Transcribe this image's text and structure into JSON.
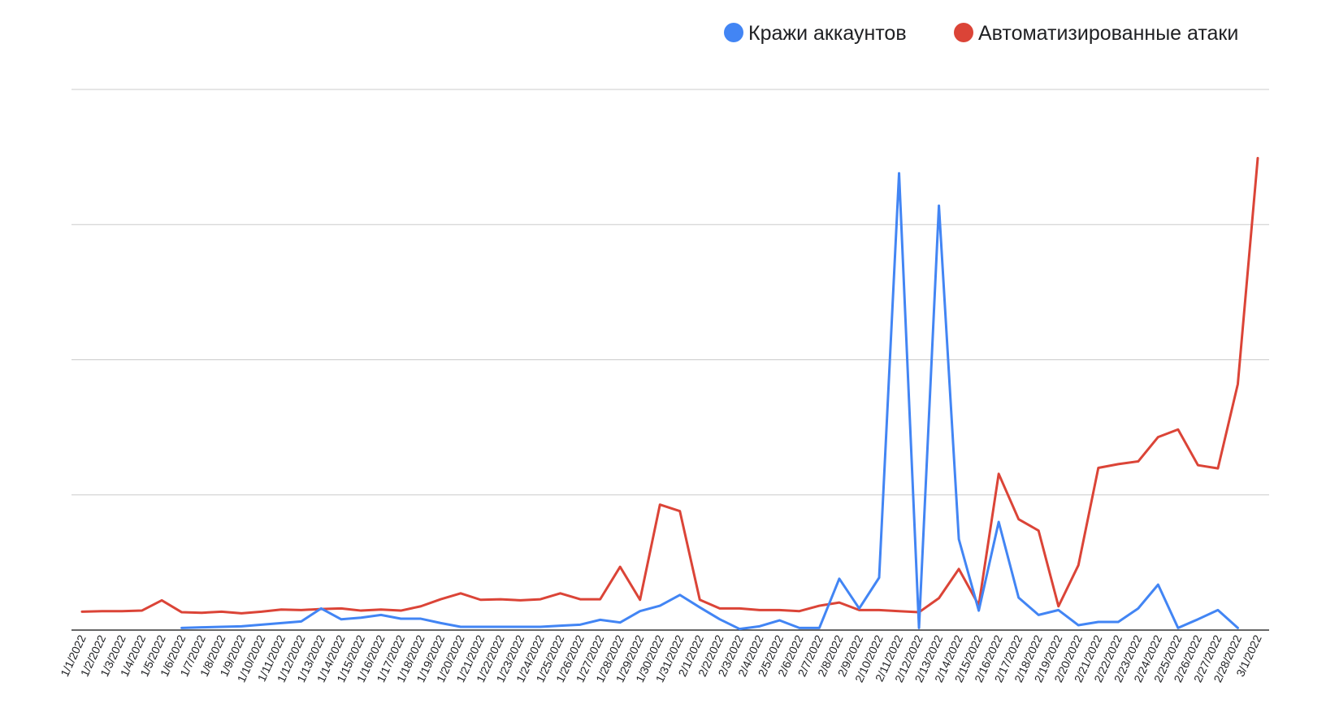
{
  "chart_data": {
    "type": "line",
    "title": "",
    "xlabel": "",
    "ylabel": "",
    "ylim": [
      0,
      100
    ],
    "y_gridlines": [
      0,
      25,
      50,
      75,
      100
    ],
    "y_tick_labels_shown": false,
    "grid": true,
    "legend_position": "top-right",
    "categories": [
      "1/1/2022",
      "1/2/2022",
      "1/3/2022",
      "1/4/2022",
      "1/5/2022",
      "1/6/2022",
      "1/7/2022",
      "1/8/2022",
      "1/9/2022",
      "1/10/2022",
      "1/11/2022",
      "1/12/2022",
      "1/13/2022",
      "1/14/2022",
      "1/15/2022",
      "1/16/2022",
      "1/17/2022",
      "1/18/2022",
      "1/19/2022",
      "1/20/2022",
      "1/21/2022",
      "1/22/2022",
      "1/23/2022",
      "1/24/2022",
      "1/25/2022",
      "1/26/2022",
      "1/27/2022",
      "1/28/2022",
      "1/29/2022",
      "1/30/2022",
      "1/31/2022",
      "2/1/2022",
      "2/2/2022",
      "2/3/2022",
      "2/4/2022",
      "2/5/2022",
      "2/6/2022",
      "2/7/2022",
      "2/8/2022",
      "2/9/2022",
      "2/10/2022",
      "2/11/2022",
      "2/12/2022",
      "2/13/2022",
      "2/14/2022",
      "2/15/2022",
      "2/16/2022",
      "2/17/2022",
      "2/18/2022",
      "2/19/2022",
      "2/20/2022",
      "2/21/2022",
      "2/22/2022",
      "2/23/2022",
      "2/24/2022",
      "2/25/2022",
      "2/26/2022",
      "2/27/2022",
      "2/28/2022",
      "3/1/2022"
    ],
    "series": [
      {
        "name": "Кражи аккаунтов",
        "color": "#4285f4",
        "values": [
          null,
          null,
          null,
          null,
          null,
          0.4,
          0.5,
          0.6,
          0.7,
          1.0,
          1.3,
          1.6,
          4.0,
          2.0,
          2.3,
          2.8,
          2.1,
          2.1,
          1.3,
          0.6,
          0.6,
          0.6,
          0.6,
          0.6,
          0.8,
          1.0,
          1.9,
          1.4,
          3.5,
          4.5,
          6.5,
          4.2,
          2.0,
          0.2,
          0.7,
          1.8,
          0.4,
          0.4,
          9.5,
          4.0,
          9.7,
          84.5,
          0.4,
          78.5,
          16.8,
          3.6,
          20.0,
          6.0,
          2.8,
          3.7,
          0.9,
          1.5,
          1.5,
          4.0,
          8.4,
          0.4,
          2.0,
          3.7,
          0.4,
          null
        ]
      },
      {
        "name": "Автоматизированные атаки",
        "color": "#db4437",
        "values": [
          3.4,
          3.5,
          3.5,
          3.6,
          5.5,
          3.3,
          3.2,
          3.4,
          3.1,
          3.4,
          3.8,
          3.7,
          3.9,
          4.0,
          3.6,
          3.8,
          3.6,
          4.4,
          5.7,
          6.8,
          5.6,
          5.7,
          5.5,
          5.7,
          6.8,
          5.7,
          5.7,
          11.7,
          5.6,
          23.2,
          22.0,
          5.6,
          4.0,
          4.0,
          3.7,
          3.7,
          3.5,
          4.5,
          5.1,
          3.7,
          3.7,
          3.5,
          3.3,
          5.9,
          11.3,
          4.6,
          28.9,
          20.5,
          18.4,
          4.4,
          12.0,
          30.0,
          30.7,
          31.2,
          35.7,
          37.1,
          30.5,
          29.9,
          45.5,
          87.3
        ]
      }
    ]
  }
}
